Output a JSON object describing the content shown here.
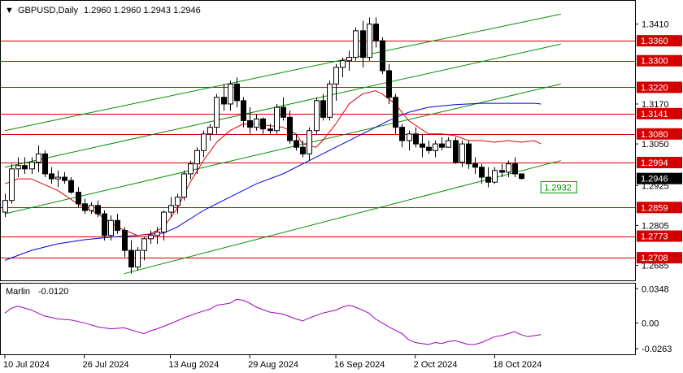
{
  "header": {
    "symbol": "GBPUSD,Daily",
    "ohlc": "1.2960 1.2960 1.2943 1.2946"
  },
  "indicator": {
    "name": "Marlin",
    "value": "-0.0120"
  },
  "colors": {
    "level": "#d40000",
    "channel": "#009000",
    "ma_fast": "#e00000",
    "ma_slow": "#0000e0",
    "oscillator": "#a000c0",
    "candle": "#000000",
    "current_price_bg": "#000000",
    "target_label": "#009000"
  },
  "chart_data": {
    "type": "candlestick",
    "price_axis": {
      "ylim": [
        1.264,
        1.348
      ],
      "ticks": [
        "1.3410",
        "1.3170",
        "1.3050",
        "1.2925",
        "1.2805",
        "1.2685"
      ]
    },
    "oscillator_axis": {
      "ylim": [
        -0.032,
        0.04
      ],
      "ticks": [
        "0.0348",
        "0.00",
        "-0.0263"
      ]
    },
    "x_labels": [
      {
        "text": "10 Jul 2024",
        "index": 0
      },
      {
        "text": "26 Jul 2024",
        "index": 12
      },
      {
        "text": "13 Aug 2024",
        "index": 25
      },
      {
        "text": "29 Aug 2024",
        "index": 37
      },
      {
        "text": "16 Sep 2024",
        "index": 50
      },
      {
        "text": "2 Oct 2024",
        "index": 62
      },
      {
        "text": "18 Oct 2024",
        "index": 74
      }
    ],
    "levels": [
      {
        "label": "1.3360",
        "value": 1.336
      },
      {
        "label": "1.3300",
        "value": 1.33
      },
      {
        "label": "1.3220",
        "value": 1.322
      },
      {
        "label": "1.3141",
        "value": 1.3141
      },
      {
        "label": "1.3080",
        "value": 1.308
      },
      {
        "label": "1.2994",
        "value": 1.2994
      },
      {
        "label": "1.2859",
        "value": 1.2859
      },
      {
        "label": "1.2773",
        "value": 1.2773
      },
      {
        "label": "1.2708",
        "value": 1.2708
      }
    ],
    "current_price": {
      "label": "1.2946",
      "value": 1.2946
    },
    "target": {
      "label": "1.2932",
      "value": 1.2932
    },
    "channels": [
      {
        "start": [
          0,
          1.309
        ],
        "end": [
          84,
          1.344
        ]
      },
      {
        "start": [
          0,
          1.298
        ],
        "end": [
          84,
          1.335
        ]
      },
      {
        "start": [
          0,
          1.284
        ],
        "end": [
          84,
          1.323
        ]
      },
      {
        "start": [
          18,
          1.266
        ],
        "end": [
          84,
          1.3
        ]
      }
    ],
    "candles": [
      [
        1.2845,
        1.29,
        1.283,
        1.288
      ],
      [
        1.288,
        1.299,
        1.287,
        1.2975
      ],
      [
        1.2975,
        1.301,
        1.295,
        1.2985
      ],
      [
        1.2985,
        1.301,
        1.296,
        1.2975
      ],
      [
        1.2975,
        1.301,
        1.296,
        1.2995
      ],
      [
        1.2995,
        1.3045,
        1.2965,
        1.302
      ],
      [
        1.302,
        1.303,
        1.295,
        1.296
      ],
      [
        1.296,
        1.298,
        1.293,
        1.2945
      ],
      [
        1.2945,
        1.297,
        1.292,
        1.295
      ],
      [
        1.295,
        1.2965,
        1.293,
        1.294
      ],
      [
        1.294,
        1.295,
        1.29,
        1.2905
      ],
      [
        1.2905,
        1.292,
        1.286,
        1.287
      ],
      [
        1.287,
        1.2885,
        1.284,
        1.285
      ],
      [
        1.285,
        1.2875,
        1.284,
        1.2865
      ],
      [
        1.2865,
        1.288,
        1.283,
        1.284
      ],
      [
        1.284,
        1.285,
        1.276,
        1.2775
      ],
      [
        1.2775,
        1.2835,
        1.276,
        1.282
      ],
      [
        1.282,
        1.284,
        1.278,
        1.279
      ],
      [
        1.279,
        1.28,
        1.271,
        1.273
      ],
      [
        1.273,
        1.276,
        1.266,
        1.268
      ],
      [
        1.268,
        1.274,
        1.267,
        1.273
      ],
      [
        1.273,
        1.277,
        1.27,
        1.2765
      ],
      [
        1.2765,
        1.279,
        1.275,
        1.2775
      ],
      [
        1.2775,
        1.28,
        1.275,
        1.2785
      ],
      [
        1.2785,
        1.285,
        1.276,
        1.2845
      ],
      [
        1.2845,
        1.289,
        1.283,
        1.2865
      ],
      [
        1.2865,
        1.29,
        1.284,
        1.289
      ],
      [
        1.289,
        1.297,
        1.288,
        1.296
      ],
      [
        1.296,
        1.3,
        1.2945,
        1.299
      ],
      [
        1.299,
        1.304,
        1.296,
        1.303
      ],
      [
        1.303,
        1.309,
        1.301,
        1.308
      ],
      [
        1.308,
        1.311,
        1.306,
        1.31
      ],
      [
        1.31,
        1.32,
        1.308,
        1.319
      ],
      [
        1.319,
        1.323,
        1.315,
        1.317
      ],
      [
        1.317,
        1.324,
        1.315,
        1.323
      ],
      [
        1.323,
        1.325,
        1.316,
        1.318
      ],
      [
        1.318,
        1.319,
        1.31,
        1.312
      ],
      [
        1.312,
        1.316,
        1.308,
        1.31
      ],
      [
        1.31,
        1.314,
        1.309,
        1.3125
      ],
      [
        1.3125,
        1.313,
        1.308,
        1.3095
      ],
      [
        1.3095,
        1.311,
        1.308,
        1.309
      ],
      [
        1.309,
        1.317,
        1.308,
        1.316
      ],
      [
        1.316,
        1.319,
        1.312,
        1.313
      ],
      [
        1.313,
        1.315,
        1.305,
        1.306
      ],
      [
        1.306,
        1.308,
        1.303,
        1.304
      ],
      [
        1.304,
        1.306,
        1.301,
        1.302
      ],
      [
        1.302,
        1.31,
        1.3,
        1.309
      ],
      [
        1.309,
        1.319,
        1.308,
        1.318
      ],
      [
        1.318,
        1.32,
        1.312,
        1.313
      ],
      [
        1.313,
        1.324,
        1.312,
        1.323
      ],
      [
        1.323,
        1.329,
        1.318,
        1.328
      ],
      [
        1.328,
        1.331,
        1.325,
        1.33
      ],
      [
        1.33,
        1.333,
        1.327,
        1.331
      ],
      [
        1.331,
        1.34,
        1.33,
        1.339
      ],
      [
        1.339,
        1.342,
        1.328,
        1.331
      ],
      [
        1.331,
        1.343,
        1.33,
        1.341
      ],
      [
        1.341,
        1.343,
        1.334,
        1.336
      ],
      [
        1.336,
        1.337,
        1.326,
        1.327
      ],
      [
        1.327,
        1.329,
        1.317,
        1.319
      ],
      [
        1.319,
        1.32,
        1.308,
        1.31
      ],
      [
        1.31,
        1.311,
        1.304,
        1.306
      ],
      [
        1.306,
        1.309,
        1.303,
        1.308
      ],
      [
        1.308,
        1.31,
        1.304,
        1.305
      ],
      [
        1.305,
        1.308,
        1.301,
        1.304
      ],
      [
        1.304,
        1.306,
        1.302,
        1.303
      ],
      [
        1.303,
        1.306,
        1.301,
        1.305
      ],
      [
        1.305,
        1.307,
        1.303,
        1.304
      ],
      [
        1.304,
        1.307,
        1.304,
        1.306
      ],
      [
        1.306,
        1.307,
        1.299,
        1.2995
      ],
      [
        1.2995,
        1.306,
        1.298,
        1.305
      ],
      [
        1.305,
        1.306,
        1.2975,
        1.299
      ],
      [
        1.299,
        1.301,
        1.296,
        1.298
      ],
      [
        1.298,
        1.299,
        1.293,
        1.295
      ],
      [
        1.295,
        1.298,
        1.292,
        1.2935
      ],
      [
        1.2935,
        1.298,
        1.293,
        1.297
      ],
      [
        1.297,
        1.299,
        1.295,
        1.2965
      ],
      [
        1.2965,
        1.3,
        1.295,
        1.299
      ],
      [
        1.299,
        1.301,
        1.295,
        1.296
      ],
      [
        1.296,
        1.296,
        1.2943,
        1.2946
      ]
    ],
    "ma_fast": [
      [
        0,
        1.293
      ],
      [
        2,
        1.2945
      ],
      [
        4,
        1.2945
      ],
      [
        8,
        1.291
      ],
      [
        11,
        1.287
      ],
      [
        14,
        1.284
      ],
      [
        17,
        1.28
      ],
      [
        20,
        1.2775
      ],
      [
        22,
        1.278
      ],
      [
        24,
        1.28
      ],
      [
        26,
        1.2855
      ],
      [
        28,
        1.2935
      ],
      [
        30,
        1.3
      ],
      [
        32,
        1.3055
      ],
      [
        34,
        1.309
      ],
      [
        36,
        1.311
      ],
      [
        38,
        1.311
      ],
      [
        40,
        1.3105
      ],
      [
        42,
        1.31
      ],
      [
        44,
        1.308
      ],
      [
        45,
        1.305
      ],
      [
        47,
        1.304
      ],
      [
        48,
        1.306
      ],
      [
        50,
        1.311
      ],
      [
        52,
        1.317
      ],
      [
        54,
        1.32
      ],
      [
        56,
        1.321
      ],
      [
        57,
        1.32
      ],
      [
        59,
        1.317
      ],
      [
        61,
        1.312
      ],
      [
        64,
        1.308
      ],
      [
        66,
        1.308
      ],
      [
        68,
        1.3075
      ],
      [
        70,
        1.306
      ],
      [
        72,
        1.306
      ],
      [
        74,
        1.3055
      ],
      [
        76,
        1.306
      ],
      [
        78,
        1.3055
      ],
      [
        80,
        1.306
      ],
      [
        81,
        1.305
      ]
    ],
    "ma_slow": [
      [
        0,
        1.27
      ],
      [
        4,
        1.273
      ],
      [
        8,
        1.275
      ],
      [
        12,
        1.2762
      ],
      [
        16,
        1.277
      ],
      [
        20,
        1.2775
      ],
      [
        24,
        1.2782
      ],
      [
        26,
        1.28
      ],
      [
        30,
        1.285
      ],
      [
        34,
        1.289
      ],
      [
        38,
        1.293
      ],
      [
        42,
        1.296
      ],
      [
        46,
        1.3
      ],
      [
        50,
        1.304
      ],
      [
        54,
        1.308
      ],
      [
        58,
        1.312
      ],
      [
        61,
        1.3145
      ],
      [
        64,
        1.316
      ],
      [
        68,
        1.3168
      ],
      [
        72,
        1.3172
      ],
      [
        76,
        1.3172
      ],
      [
        80,
        1.3172
      ],
      [
        81,
        1.317
      ]
    ],
    "oscillator": [
      [
        0,
        0.01
      ],
      [
        1,
        0.015
      ],
      [
        2,
        0.017
      ],
      [
        4,
        0.013
      ],
      [
        6,
        0.007
      ],
      [
        8,
        0.004
      ],
      [
        10,
        0.003
      ],
      [
        12,
        0.0
      ],
      [
        14,
        -0.004
      ],
      [
        16,
        -0.006
      ],
      [
        18,
        -0.005
      ],
      [
        20,
        -0.009
      ],
      [
        21,
        -0.011
      ],
      [
        22,
        -0.008
      ],
      [
        23,
        -0.006
      ],
      [
        25,
        -0.001
      ],
      [
        27,
        0.005
      ],
      [
        29,
        0.01
      ],
      [
        31,
        0.014
      ],
      [
        32,
        0.018
      ],
      [
        34,
        0.02
      ],
      [
        35,
        0.024
      ],
      [
        36,
        0.023
      ],
      [
        37,
        0.02
      ],
      [
        38,
        0.016
      ],
      [
        40,
        0.011
      ],
      [
        42,
        0.009
      ],
      [
        44,
        0.004
      ],
      [
        45,
        0.002
      ],
      [
        46,
        0.005
      ],
      [
        48,
        0.01
      ],
      [
        50,
        0.013
      ],
      [
        51,
        0.016
      ],
      [
        52,
        0.018
      ],
      [
        53,
        0.016
      ],
      [
        55,
        0.01
      ],
      [
        56,
        0.004
      ],
      [
        58,
        -0.004
      ],
      [
        60,
        -0.011
      ],
      [
        61,
        -0.017
      ],
      [
        62,
        -0.02
      ],
      [
        63,
        -0.021
      ],
      [
        64,
        -0.022
      ],
      [
        65,
        -0.02
      ],
      [
        66,
        -0.021
      ],
      [
        67,
        -0.019
      ],
      [
        68,
        -0.018
      ],
      [
        69,
        -0.02
      ],
      [
        70,
        -0.022
      ],
      [
        71,
        -0.022
      ],
      [
        72,
        -0.02
      ],
      [
        73,
        -0.017
      ],
      [
        74,
        -0.014
      ],
      [
        75,
        -0.013
      ],
      [
        76,
        -0.011
      ],
      [
        77,
        -0.009
      ],
      [
        78,
        -0.012
      ],
      [
        79,
        -0.014
      ],
      [
        80,
        -0.013
      ],
      [
        81,
        -0.012
      ]
    ]
  }
}
